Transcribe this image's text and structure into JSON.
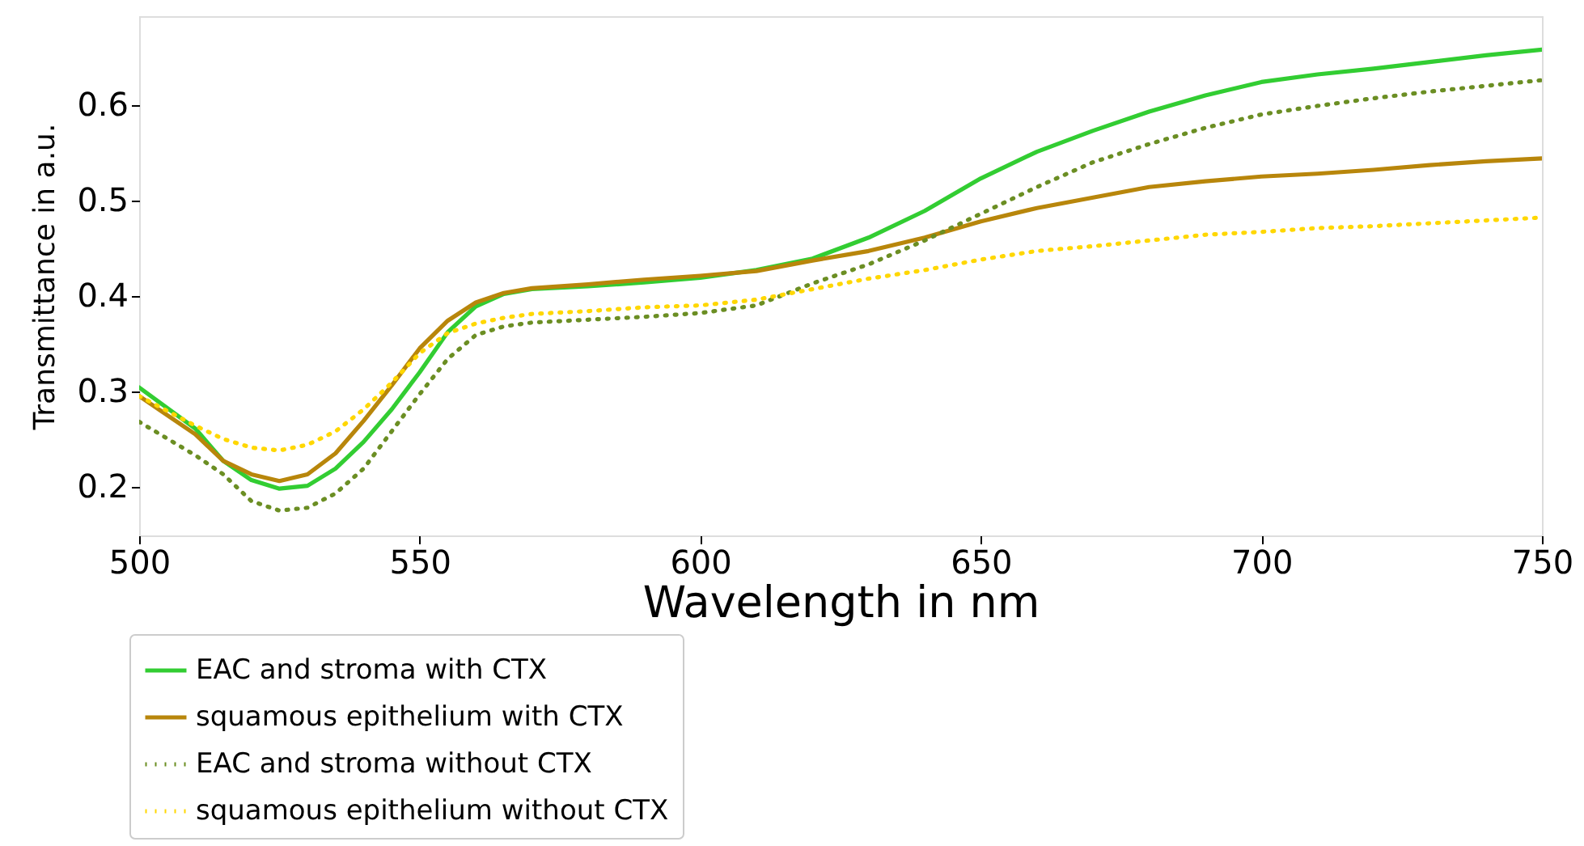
{
  "chart_data": {
    "type": "line",
    "xlabel": "Wavelength in nm",
    "ylabel": "Transmittance in a.u.",
    "x": [
      500,
      510,
      515,
      520,
      525,
      530,
      535,
      540,
      545,
      550,
      555,
      560,
      565,
      570,
      580,
      590,
      600,
      610,
      620,
      630,
      640,
      650,
      660,
      670,
      680,
      690,
      700,
      710,
      720,
      730,
      740,
      750
    ],
    "series": [
      {
        "name": "EAC and stroma with CTX",
        "color": "#32cd32",
        "line_style": "solid",
        "values": [
          0.304,
          0.261,
          0.227,
          0.207,
          0.198,
          0.201,
          0.219,
          0.247,
          0.281,
          0.32,
          0.362,
          0.389,
          0.402,
          0.407,
          0.41,
          0.414,
          0.419,
          0.427,
          0.439,
          0.461,
          0.489,
          0.523,
          0.551,
          0.573,
          0.593,
          0.61,
          0.624,
          0.632,
          0.638,
          0.645,
          0.652,
          0.658
        ]
      },
      {
        "name": "squamous epithelium with CTX",
        "color": "#b8860b",
        "line_style": "solid",
        "values": [
          0.295,
          0.255,
          0.227,
          0.213,
          0.206,
          0.213,
          0.235,
          0.269,
          0.306,
          0.345,
          0.374,
          0.393,
          0.403,
          0.408,
          0.412,
          0.417,
          0.421,
          0.426,
          0.437,
          0.447,
          0.461,
          0.478,
          0.492,
          0.503,
          0.514,
          0.52,
          0.525,
          0.528,
          0.532,
          0.537,
          0.541,
          0.544
        ]
      },
      {
        "name": "EAC and stroma without CTX",
        "color": "#6b8e23",
        "line_style": "dotted",
        "values": [
          0.268,
          0.233,
          0.213,
          0.185,
          0.175,
          0.178,
          0.193,
          0.219,
          0.258,
          0.297,
          0.334,
          0.359,
          0.368,
          0.372,
          0.375,
          0.378,
          0.382,
          0.39,
          0.413,
          0.433,
          0.458,
          0.486,
          0.514,
          0.54,
          0.559,
          0.576,
          0.59,
          0.599,
          0.607,
          0.614,
          0.62,
          0.626
        ]
      },
      {
        "name": "squamous epithelium without CTX",
        "color": "#ffd700",
        "line_style": "dotted",
        "values": [
          0.295,
          0.264,
          0.25,
          0.241,
          0.238,
          0.244,
          0.258,
          0.281,
          0.309,
          0.34,
          0.361,
          0.371,
          0.377,
          0.381,
          0.384,
          0.388,
          0.39,
          0.396,
          0.407,
          0.418,
          0.427,
          0.438,
          0.447,
          0.452,
          0.458,
          0.464,
          0.467,
          0.471,
          0.473,
          0.476,
          0.479,
          0.482
        ]
      }
    ],
    "xlim": [
      500,
      750
    ],
    "xticks": [
      500,
      550,
      600,
      650,
      700,
      750
    ],
    "ylim": [
      0.149,
      0.693
    ],
    "yticks": [
      0.2,
      0.3,
      0.4,
      0.5,
      0.6
    ],
    "grid": false,
    "legend": "bottom left",
    "marker": "none"
  }
}
